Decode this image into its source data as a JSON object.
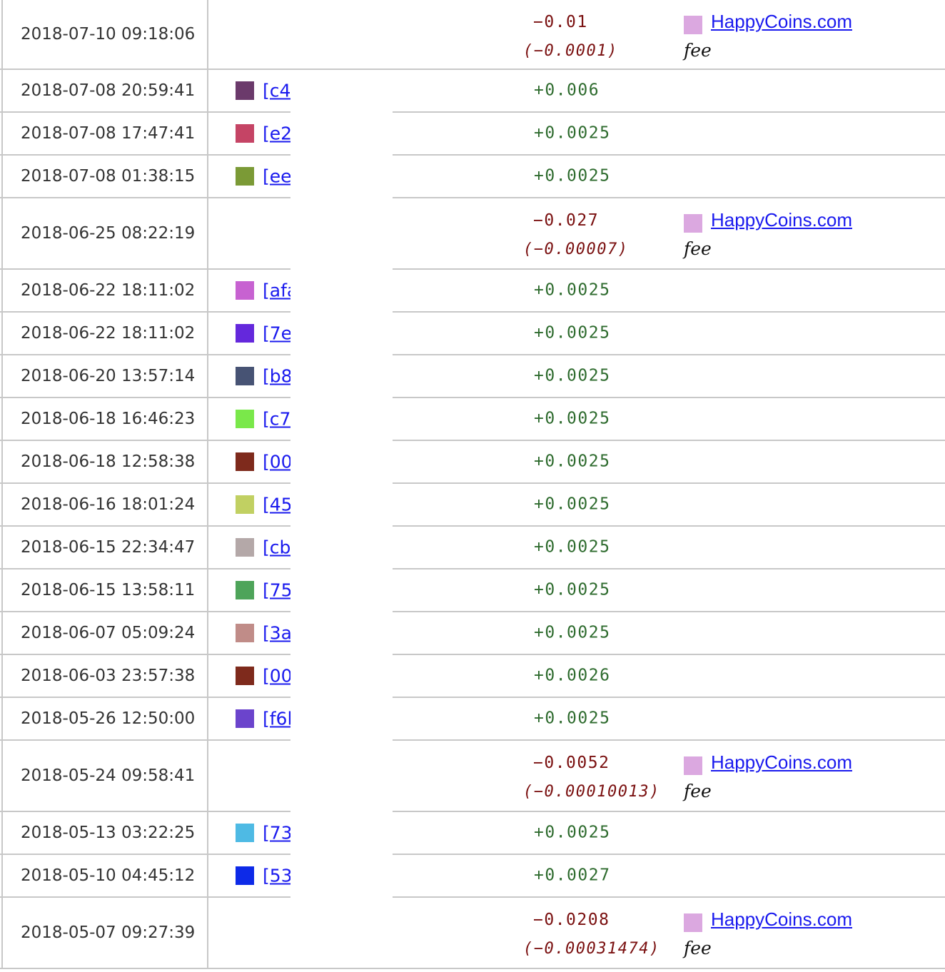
{
  "colors": {
    "positive_amount": "#2e6b2e",
    "negative_amount": "#7a1010",
    "link": "#1a1aee",
    "grid": "#c8c8c8",
    "happycoins_swatch": "#dba8e0"
  },
  "rows": [
    {
      "date": "2018-07-10 09:18:06",
      "kind": "out",
      "amount": "−0.01",
      "fee_amount": "(−0.0001)",
      "recipient": "HappyCoins.com",
      "fee_label": "fee"
    },
    {
      "date": "2018-07-08 20:59:41",
      "kind": "in",
      "amount": "+0.006",
      "address": "[c4",
      "swatch": "#6b3a6b"
    },
    {
      "date": "2018-07-08 17:47:41",
      "kind": "in",
      "amount": "+0.0025",
      "address": "[e2",
      "swatch": "#c54465"
    },
    {
      "date": "2018-07-08 01:38:15",
      "kind": "in",
      "amount": "+0.0025",
      "address": "[ee",
      "swatch": "#7b9a36"
    },
    {
      "date": "2018-06-25 08:22:19",
      "kind": "out",
      "amount": "−0.027",
      "fee_amount": "(−0.00007)",
      "recipient": "HappyCoins.com",
      "fee_label": "fee"
    },
    {
      "date": "2018-06-22 18:11:02",
      "kind": "in",
      "amount": "+0.0025",
      "address": "[afa",
      "swatch": "#c762d1"
    },
    {
      "date": "2018-06-22 18:11:02",
      "kind": "in",
      "amount": "+0.0025",
      "address": "[7e",
      "swatch": "#6428dc"
    },
    {
      "date": "2018-06-20 13:57:14",
      "kind": "in",
      "amount": "+0.0025",
      "address": "[b8",
      "swatch": "#475374"
    },
    {
      "date": "2018-06-18 16:46:23",
      "kind": "in",
      "amount": "+0.0025",
      "address": "[c7",
      "swatch": "#7ae84a"
    },
    {
      "date": "2018-06-18 12:58:38",
      "kind": "in",
      "amount": "+0.0025",
      "address": "[00",
      "swatch": "#7e2a1c"
    },
    {
      "date": "2018-06-16 18:01:24",
      "kind": "in",
      "amount": "+0.0025",
      "address": "[45",
      "swatch": "#c1d062"
    },
    {
      "date": "2018-06-15 22:34:47",
      "kind": "in",
      "amount": "+0.0025",
      "address": "[cb",
      "swatch": "#b4a8a8"
    },
    {
      "date": "2018-06-15 13:58:11",
      "kind": "in",
      "amount": "+0.0025",
      "address": "[75",
      "swatch": "#4ea45a"
    },
    {
      "date": "2018-06-07 05:09:24",
      "kind": "in",
      "amount": "+0.0025",
      "address": "[3a",
      "swatch": "#c08c88"
    },
    {
      "date": "2018-06-03 23:57:38",
      "kind": "in",
      "amount": "+0.0026",
      "address": "[00",
      "swatch": "#7e2a1c"
    },
    {
      "date": "2018-05-26 12:50:00",
      "kind": "in",
      "amount": "+0.0025",
      "address": "[f6l",
      "swatch": "#6b44cc"
    },
    {
      "date": "2018-05-24 09:58:41",
      "kind": "out",
      "amount": "−0.0052",
      "fee_amount": "(−0.00010013)",
      "recipient": "HappyCoins.com",
      "fee_label": "fee"
    },
    {
      "date": "2018-05-13 03:22:25",
      "kind": "in",
      "amount": "+0.0025",
      "address": "[73",
      "swatch": "#4ebae4"
    },
    {
      "date": "2018-05-10 04:45:12",
      "kind": "in",
      "amount": "+0.0027",
      "address": "[53",
      "swatch": "#0d2ae8"
    },
    {
      "date": "2018-05-07 09:27:39",
      "kind": "out",
      "amount": "−0.0208",
      "fee_amount": "(−0.00031474)",
      "recipient": "HappyCoins.com",
      "fee_label": "fee"
    }
  ]
}
